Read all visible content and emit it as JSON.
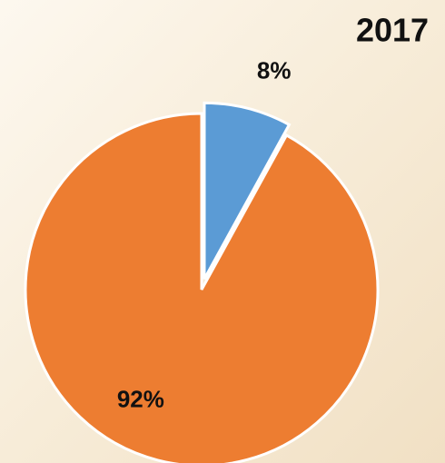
{
  "chart_data": {
    "type": "pie",
    "title": "2017",
    "values": [
      8,
      92
    ],
    "value_labels": [
      "8%",
      "92%"
    ],
    "colors": [
      "#5b9bd5",
      "#ed7d31"
    ]
  }
}
